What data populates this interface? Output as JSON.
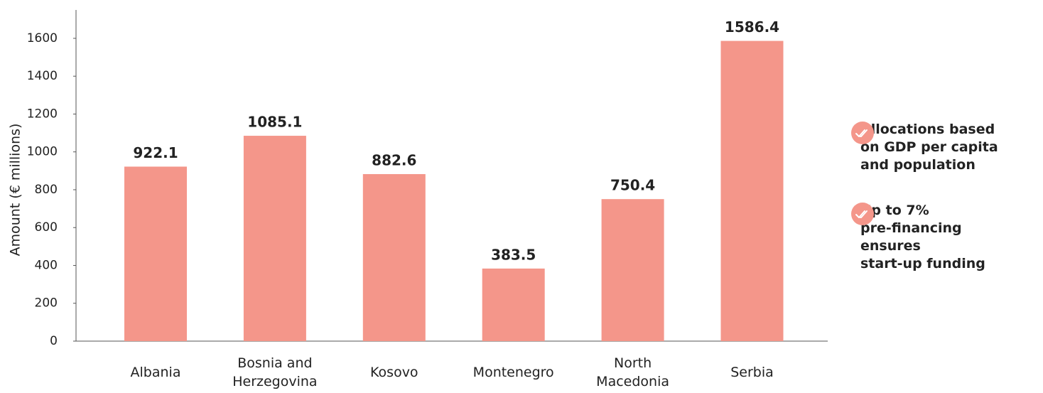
{
  "chart_data": {
    "type": "bar",
    "y_label": "Amount (€ millions)",
    "categories": [
      "Albania",
      "Bosnia and Herzegovina",
      "Kosovo",
      "Montenegro",
      "North Macedonia",
      "Serbia"
    ],
    "values": [
      922.1,
      1085.1,
      882.6,
      383.5,
      750.4,
      1586.4
    ],
    "color": "#f4968a",
    "ylim": [
      0,
      1750
    ],
    "yticks": [
      0,
      200,
      400,
      600,
      800,
      1000,
      1200,
      1400,
      1600
    ],
    "grid": false
  },
  "notes": [
    {
      "lines": [
        "Allocations based",
        "on GDP per capita",
        "and population"
      ]
    },
    {
      "lines": [
        "Up to 7%",
        "pre-financing",
        "ensures",
        "start-up funding"
      ]
    }
  ]
}
